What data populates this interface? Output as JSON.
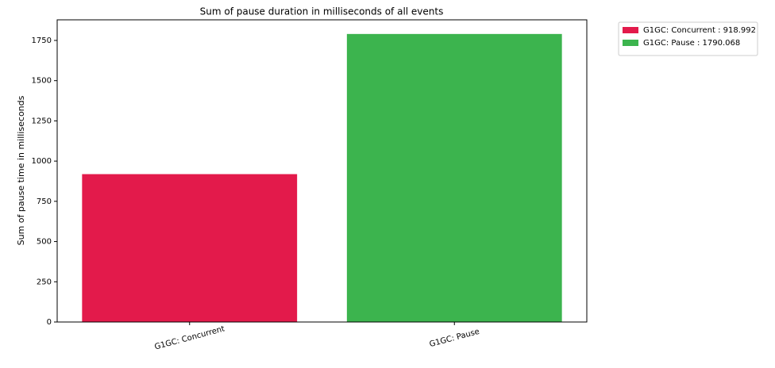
{
  "chart_data": {
    "type": "bar",
    "title": "Sum of pause duration in milliseconds of all events",
    "y_label": "Sum of pause time in milliseconds",
    "categories": [
      "G1GC: Concurrent",
      "G1GC: Pause"
    ],
    "series": [
      {
        "name": "G1GC: Concurrent : 918.992",
        "color": "#e31a4b",
        "values": [
          918.992,
          null
        ]
      },
      {
        "name": "G1GC: Pause : 1790.068",
        "color": "#3cb44e",
        "values": [
          null,
          1790.068
        ]
      }
    ],
    "ylim": [
      0,
      1878
    ],
    "yticks": [
      0,
      250,
      500,
      750,
      1000,
      1250,
      1500,
      1750
    ],
    "legend": "outside-upper-right"
  }
}
